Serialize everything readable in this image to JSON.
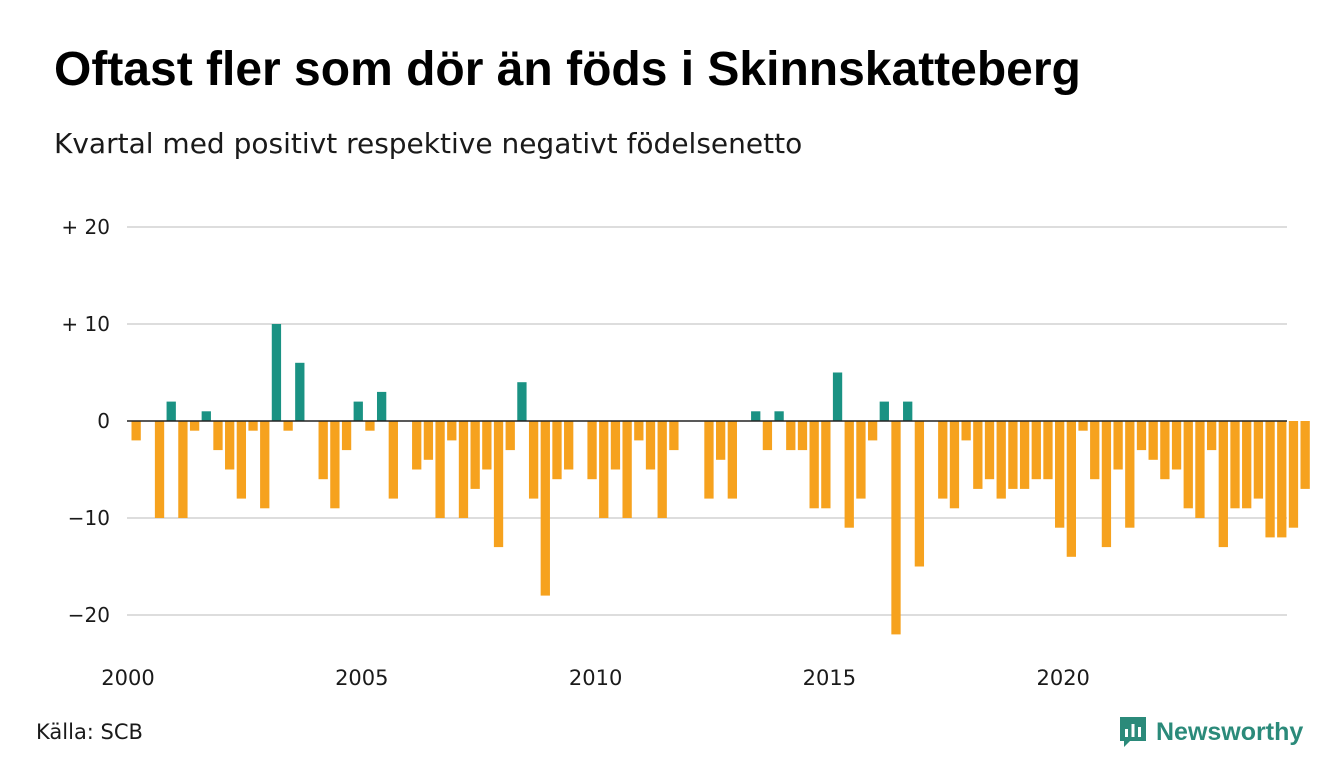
{
  "header": {
    "title": "Oftast fler som dör än föds i Skinnskatteberg",
    "subtitle": "Kvartal med positivt respektive negativt födelsenetto"
  },
  "footer": {
    "source": "Källa: SCB",
    "brand": "Newsworthy"
  },
  "colors": {
    "positive": "#1a9283",
    "negative": "#f6a21e",
    "grid": "#dddddd",
    "zero_line": "#222222",
    "brand": "#2b8a7a"
  },
  "chart_data": {
    "type": "bar",
    "title": "Oftast fler som dör än föds i Skinnskatteberg",
    "subtitle": "Kvartal med positivt respektive negativt födelsenetto",
    "ylim": [
      -24,
      21
    ],
    "yticks": [
      20,
      10,
      0,
      -10,
      -20
    ],
    "ytick_labels": [
      "+ 20",
      "+ 10",
      "0",
      "−10",
      "−20"
    ],
    "xlim": [
      2000,
      2024.75
    ],
    "xticks": [
      2000,
      2005,
      2010,
      2015,
      2020
    ],
    "xtick_labels": [
      "2000",
      "2005",
      "2010",
      "2015",
      "2020"
    ],
    "grid": true,
    "start": "2000 Q1",
    "frequency": "quarterly",
    "values": [
      -2,
      0,
      -10,
      2,
      -10,
      -1,
      1,
      -3,
      -5,
      -8,
      -1,
      -9,
      10,
      -1,
      6,
      0,
      -6,
      -9,
      -3,
      2,
      -1,
      3,
      -8,
      0,
      -5,
      -4,
      -10,
      -2,
      -10,
      -7,
      -5,
      -13,
      -3,
      4,
      -8,
      -18,
      -6,
      -5,
      0,
      -6,
      -10,
      -5,
      -10,
      -2,
      -5,
      -10,
      -3,
      0,
      0,
      -8,
      -4,
      -8,
      0,
      1,
      -3,
      1,
      -3,
      -3,
      -9,
      -9,
      5,
      -11,
      -8,
      -2,
      2,
      -22,
      2,
      -15,
      0,
      -8,
      -9,
      -2,
      -7,
      -6,
      -8,
      -7,
      -7,
      -6,
      -6,
      -11,
      -14,
      -1,
      -6,
      -13,
      -5,
      -11,
      -3,
      -4,
      -6,
      -5,
      -9,
      -10,
      -3,
      -13,
      -9,
      -9,
      -8,
      -12,
      -12,
      -11,
      -7
    ]
  }
}
